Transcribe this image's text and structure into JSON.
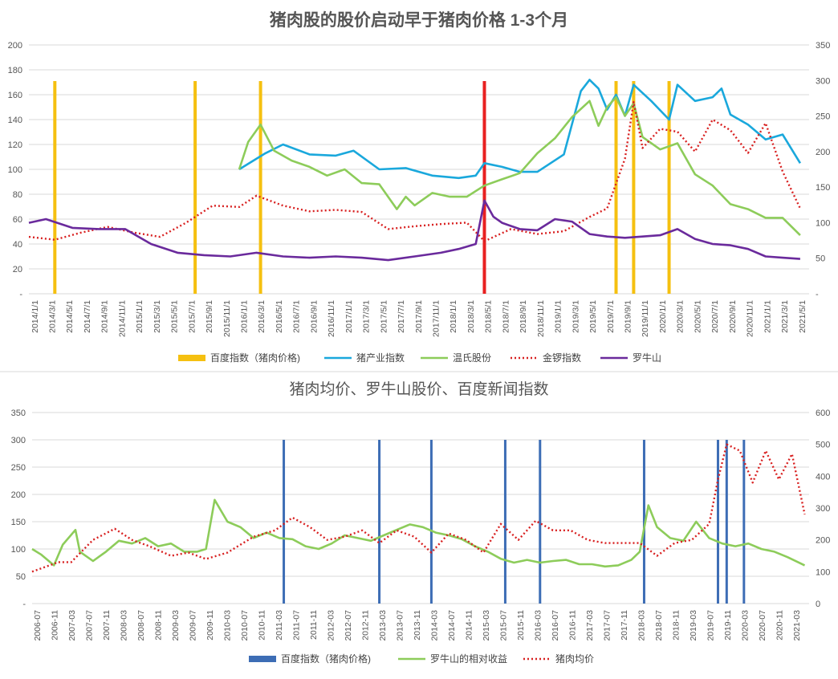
{
  "chart_data": [
    {
      "type": "line",
      "title": "猪肉股的股价启动早于猪肉价格 1-3个月",
      "y_left": {
        "ticks": [
          "-",
          "20",
          "40",
          "60",
          "80",
          "100",
          "120",
          "140",
          "160",
          "180",
          "200"
        ],
        "range": [
          0,
          200
        ]
      },
      "y_right": {
        "ticks": [
          "-",
          "50",
          "100",
          "150",
          "200",
          "250",
          "300",
          "350"
        ],
        "range": [
          0,
          350
        ]
      },
      "x_range": [
        "2014-01-01",
        "2021-06-01"
      ],
      "x_tick_labels": [
        "2014/1/1",
        "2014/3/1",
        "2014/5/1",
        "2014/7/1",
        "2014/9/1",
        "2014/11/1",
        "2015/1/1",
        "2015/3/1",
        "2015/5/1",
        "2015/7/1",
        "2015/9/1",
        "2015/11/1",
        "2016/1/1",
        "2016/3/1",
        "2016/5/1",
        "2016/7/1",
        "2016/9/1",
        "2016/11/1",
        "2017/1/1",
        "2017/3/1",
        "2017/5/1",
        "2017/7/1",
        "2017/9/1",
        "2017/11/1",
        "2018/1/1",
        "2018/3/1",
        "2018/5/1",
        "2018/7/1",
        "2018/9/1",
        "2018/11/1",
        "2019/1/1",
        "2019/3/1",
        "2019/5/1",
        "2019/7/1",
        "2019/9/1",
        "2019/11/1",
        "2020/1/1",
        "2020/3/1",
        "2020/5/1",
        "2020/7/1",
        "2020/9/1",
        "2020/11/1",
        "2021/1/1",
        "2021/3/1",
        "2021/5/1"
      ],
      "legend_position": "bottom",
      "grid": true,
      "event_bars": {
        "name": "百度指数（猪肉价格)",
        "color": "#f5c010",
        "dates": [
          "2014-04-01",
          "2015-08-01",
          "2016-03-15",
          "2019-08-01",
          "2019-10-01",
          "2020-02-01"
        ],
        "highlight": {
          "date": "2018-05-01",
          "color": "#e82020"
        }
      },
      "series": [
        {
          "name": "猪产业指数",
          "axis": "left",
          "color": "#1aa8dc",
          "style": "solid",
          "x": [
            "2016-01-01",
            "2016-04-01",
            "2016-06-01",
            "2016-09-01",
            "2016-12-01",
            "2017-02-01",
            "2017-05-01",
            "2017-08-01",
            "2017-11-01",
            "2018-02-01",
            "2018-04-01",
            "2018-05-01",
            "2018-07-01",
            "2018-09-01",
            "2018-11-01",
            "2019-02-01",
            "2019-04-01",
            "2019-05-01",
            "2019-06-01",
            "2019-07-01",
            "2019-08-01",
            "2019-09-01",
            "2019-10-01",
            "2019-12-01",
            "2020-02-01",
            "2020-03-01",
            "2020-05-01",
            "2020-07-01",
            "2020-08-01",
            "2020-09-01",
            "2020-11-01",
            "2021-01-01",
            "2021-03-01",
            "2021-05-01"
          ],
          "y": [
            100,
            113,
            120,
            112,
            111,
            115,
            100,
            101,
            95,
            93,
            95,
            105,
            102,
            98,
            98,
            112,
            163,
            172,
            165,
            148,
            160,
            143,
            168,
            155,
            140,
            168,
            155,
            158,
            165,
            144,
            136,
            124,
            128,
            105
          ]
        },
        {
          "name": "温氏股份",
          "axis": "left",
          "color": "#8dcc5a",
          "style": "solid",
          "x": [
            "2016-01-01",
            "2016-02-01",
            "2016-03-15",
            "2016-05-01",
            "2016-07-01",
            "2016-09-01",
            "2016-11-01",
            "2017-01-01",
            "2017-03-01",
            "2017-05-01",
            "2017-07-01",
            "2017-08-01",
            "2017-09-01",
            "2017-11-01",
            "2018-01-01",
            "2018-03-01",
            "2018-05-01",
            "2018-07-01",
            "2018-09-01",
            "2018-11-01",
            "2019-01-01",
            "2019-03-01",
            "2019-05-01",
            "2019-06-01",
            "2019-07-01",
            "2019-08-01",
            "2019-09-01",
            "2019-10-01",
            "2019-11-01",
            "2020-01-01",
            "2020-03-01",
            "2020-05-01",
            "2020-07-01",
            "2020-09-01",
            "2020-11-01",
            "2021-01-01",
            "2021-03-01",
            "2021-05-01"
          ],
          "y": [
            100,
            122,
            136,
            115,
            107,
            102,
            95,
            100,
            89,
            88,
            68,
            78,
            71,
            81,
            78,
            78,
            87,
            92,
            97,
            113,
            125,
            142,
            155,
            135,
            150,
            158,
            143,
            153,
            126,
            116,
            121,
            96,
            87,
            72,
            68,
            61,
            61,
            47
          ]
        },
        {
          "name": "金锣指数",
          "axis": "right",
          "color": "#d82020",
          "style": "dotted",
          "x": [
            "2014-01-01",
            "2014-04-01",
            "2014-07-01",
            "2014-10-01",
            "2015-01-01",
            "2015-04-01",
            "2015-07-01",
            "2015-10-01",
            "2016-01-01",
            "2016-03-01",
            "2016-06-01",
            "2016-09-01",
            "2016-12-01",
            "2017-03-01",
            "2017-06-01",
            "2017-09-01",
            "2017-12-01",
            "2018-03-01",
            "2018-05-01",
            "2018-08-01",
            "2018-11-01",
            "2019-02-01",
            "2019-05-01",
            "2019-07-01",
            "2019-09-01",
            "2019-10-01",
            "2019-11-01",
            "2020-01-01",
            "2020-03-01",
            "2020-05-01",
            "2020-07-01",
            "2020-09-01",
            "2020-11-01",
            "2021-01-01",
            "2021-03-01",
            "2021-05-01"
          ],
          "y": [
            80,
            76,
            86,
            94,
            86,
            80,
            100,
            124,
            122,
            138,
            124,
            116,
            118,
            115,
            91,
            95,
            98,
            100,
            74,
            91,
            84,
            88,
            108,
            120,
            190,
            270,
            205,
            232,
            228,
            200,
            245,
            230,
            198,
            240,
            172,
            120
          ]
        },
        {
          "name": "罗牛山",
          "axis": "left",
          "color": "#6a2a9c",
          "style": "solid",
          "x": [
            "2014-01-01",
            "2014-03-01",
            "2014-06-01",
            "2014-09-01",
            "2014-12-01",
            "2015-03-01",
            "2015-06-01",
            "2015-09-01",
            "2015-12-01",
            "2016-03-01",
            "2016-06-01",
            "2016-09-01",
            "2016-12-01",
            "2017-03-01",
            "2017-06-01",
            "2017-09-01",
            "2017-12-01",
            "2018-02-01",
            "2018-04-01",
            "2018-05-01",
            "2018-06-01",
            "2018-07-01",
            "2018-09-01",
            "2018-11-01",
            "2019-01-01",
            "2019-03-01",
            "2019-05-01",
            "2019-07-01",
            "2019-09-01",
            "2019-11-01",
            "2020-01-01",
            "2020-03-01",
            "2020-05-01",
            "2020-07-01",
            "2020-09-01",
            "2020-11-01",
            "2021-01-01",
            "2021-03-01",
            "2021-05-01"
          ],
          "y": [
            57,
            60,
            53,
            52,
            52,
            40,
            33,
            31,
            30,
            33,
            30,
            29,
            30,
            29,
            27,
            30,
            33,
            36,
            40,
            75,
            62,
            57,
            52,
            51,
            60,
            58,
            48,
            46,
            45,
            46,
            47,
            52,
            44,
            40,
            39,
            36,
            30,
            29,
            28
          ]
        }
      ]
    },
    {
      "type": "line",
      "title": "猪肉均价、罗牛山股价、百度新闻指数",
      "y_left": {
        "ticks": [
          "-",
          "50",
          "100",
          "150",
          "200",
          "250",
          "300",
          "350"
        ],
        "range": [
          0,
          350
        ]
      },
      "y_right": {
        "ticks": [
          "0",
          "100",
          "200",
          "300",
          "400",
          "500",
          "600"
        ],
        "range": [
          0,
          600
        ]
      },
      "x_range": [
        "2006-07-01",
        "2021-06-01"
      ],
      "x_tick_labels": [
        "2006-07",
        "2006-11",
        "2007-03",
        "2007-07",
        "2007-11",
        "2008-03",
        "2008-07",
        "2008-11",
        "2009-03",
        "2009-07",
        "2009-11",
        "2010-03",
        "2010-07",
        "2010-11",
        "2011-03",
        "2011-07",
        "2011-11",
        "2012-03",
        "2012-07",
        "2012-11",
        "2013-03",
        "2013-07",
        "2013-11",
        "2014-03",
        "2014-07",
        "2014-11",
        "2015-03",
        "2015-07",
        "2015-11",
        "2016-03",
        "2016-07",
        "2016-11",
        "2017-03",
        "2017-07",
        "2017-11",
        "2018-03",
        "2018-07",
        "2018-11",
        "2019-03",
        "2019-07",
        "2019-11",
        "2020-03",
        "2020-07",
        "2020-11",
        "2021-03"
      ],
      "legend_position": "bottom",
      "grid": true,
      "event_bars": {
        "name": "百度指数（猪肉价格)",
        "color": "#3d6db5",
        "dates": [
          "2011-05-01",
          "2013-03-01",
          "2014-03-01",
          "2015-08-01",
          "2016-04-01",
          "2018-04-01",
          "2019-09-01",
          "2019-11-01",
          "2020-03-01"
        ]
      },
      "series": [
        {
          "name": "罗牛山的相对收益",
          "axis": "left",
          "color": "#8dcc5a",
          "style": "solid",
          "x": [
            "2006-07-01",
            "2006-09-01",
            "2006-12-01",
            "2007-02-01",
            "2007-05-01",
            "2007-06-01",
            "2007-09-01",
            "2007-12-01",
            "2008-03-01",
            "2008-06-01",
            "2008-09-01",
            "2008-12-01",
            "2009-03-01",
            "2009-06-01",
            "2009-09-01",
            "2009-11-01",
            "2010-01-01",
            "2010-04-01",
            "2010-07-01",
            "2010-10-01",
            "2011-01-01",
            "2011-04-01",
            "2011-07-01",
            "2011-10-01",
            "2012-01-01",
            "2012-04-01",
            "2012-07-01",
            "2012-10-01",
            "2013-01-01",
            "2013-04-01",
            "2013-07-01",
            "2013-10-01",
            "2014-01-01",
            "2014-04-01",
            "2014-07-01",
            "2014-10-01",
            "2015-01-01",
            "2015-04-01",
            "2015-07-01",
            "2015-10-01",
            "2016-01-01",
            "2016-04-01",
            "2016-07-01",
            "2016-10-01",
            "2017-01-01",
            "2017-04-01",
            "2017-07-01",
            "2017-10-01",
            "2018-01-01",
            "2018-03-01",
            "2018-05-01",
            "2018-07-01",
            "2018-10-01",
            "2019-01-01",
            "2019-04-01",
            "2019-07-01",
            "2019-10-01",
            "2020-01-01",
            "2020-04-01",
            "2020-07-01",
            "2020-10-01",
            "2021-01-01",
            "2021-05-01"
          ],
          "y": [
            100,
            90,
            70,
            108,
            135,
            95,
            78,
            95,
            115,
            110,
            120,
            105,
            110,
            95,
            95,
            100,
            190,
            150,
            140,
            120,
            130,
            120,
            118,
            105,
            100,
            110,
            125,
            120,
            115,
            125,
            135,
            145,
            140,
            130,
            125,
            118,
            105,
            95,
            82,
            75,
            80,
            75,
            78,
            80,
            72,
            72,
            68,
            70,
            80,
            95,
            180,
            140,
            120,
            115,
            150,
            120,
            110,
            105,
            110,
            100,
            95,
            85,
            70
          ]
        },
        {
          "name": "猪肉均价",
          "axis": "right",
          "color": "#d82020",
          "style": "dotted",
          "x": [
            "2006-07-01",
            "2007-01-01",
            "2007-04-01",
            "2007-09-01",
            "2008-02-01",
            "2008-06-01",
            "2008-10-01",
            "2009-03-01",
            "2009-07-01",
            "2009-11-01",
            "2010-04-01",
            "2010-10-01",
            "2011-03-01",
            "2011-07-01",
            "2011-11-01",
            "2012-03-01",
            "2012-07-01",
            "2012-11-01",
            "2013-03-01",
            "2013-07-01",
            "2013-11-01",
            "2014-03-01",
            "2014-07-01",
            "2014-11-01",
            "2015-03-01",
            "2015-07-01",
            "2015-11-01",
            "2016-03-01",
            "2016-07-01",
            "2016-11-01",
            "2017-03-01",
            "2017-07-01",
            "2017-11-01",
            "2018-03-01",
            "2018-07-01",
            "2018-11-01",
            "2019-03-01",
            "2019-07-01",
            "2019-09-01",
            "2019-11-01",
            "2020-02-01",
            "2020-05-01",
            "2020-08-01",
            "2020-11-01",
            "2021-02-01",
            "2021-05-01"
          ],
          "y": [
            100,
            130,
            130,
            200,
            235,
            200,
            180,
            150,
            160,
            140,
            160,
            210,
            230,
            270,
            240,
            200,
            210,
            230,
            190,
            230,
            210,
            160,
            220,
            200,
            160,
            250,
            200,
            260,
            230,
            230,
            200,
            190,
            190,
            190,
            150,
            190,
            200,
            250,
            390,
            500,
            480,
            380,
            480,
            390,
            470,
            280
          ]
        }
      ]
    }
  ],
  "legend1": [
    "百度指数（猪肉价格)",
    "猪产业指数",
    "温氏股份",
    "金锣指数",
    "罗牛山"
  ],
  "legend2": [
    "百度指数（猪肉价格)",
    "罗牛山的相对收益",
    "猪肉均价"
  ]
}
